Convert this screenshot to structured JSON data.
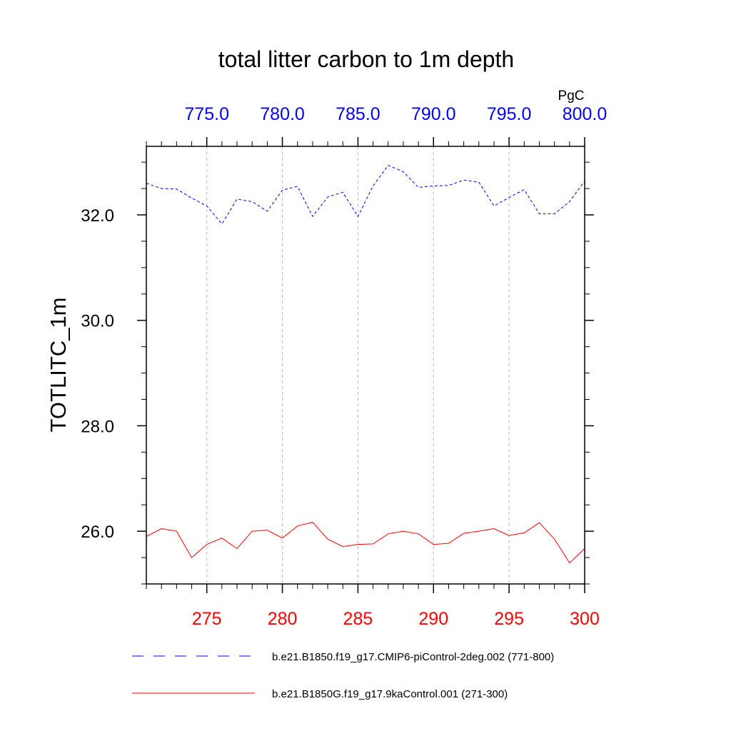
{
  "chart_data": {
    "type": "line",
    "title": "total litter carbon to 1m depth",
    "units": "PgC",
    "ylabel": "TOTLITC_1m",
    "ylim": [
      25.0,
      33.3
    ],
    "y_ticks": [
      "26.0",
      "28.0",
      "30.0",
      "32.0"
    ],
    "y_tick_values": [
      26,
      28,
      30,
      32
    ],
    "bottom_axis": {
      "xlim": [
        271,
        300
      ],
      "ticks": [
        "275",
        "280",
        "285",
        "290",
        "295",
        "300"
      ],
      "tick_values": [
        275,
        280,
        285,
        290,
        295,
        300
      ],
      "color": "#ff0000"
    },
    "top_axis": {
      "xlim": [
        771,
        800
      ],
      "ticks": [
        "775.0",
        "780.0",
        "785.0",
        "790.0",
        "795.0",
        "800.0"
      ],
      "tick_values": [
        775,
        780,
        785,
        790,
        795,
        800
      ],
      "color": "#0000ff"
    },
    "grid": "vertical dashed",
    "series": [
      {
        "name": "b.e21.B1850.f19_g17.CMIP6-piControl-2deg.002 (771-800)",
        "axis": "top",
        "color": "#0000ff",
        "dash": "dashed",
        "x": [
          771,
          772,
          773,
          774,
          775,
          776,
          777,
          778,
          779,
          780,
          781,
          782,
          783,
          784,
          785,
          786,
          787,
          788,
          789,
          790,
          791,
          792,
          793,
          794,
          795,
          796,
          797,
          798,
          799,
          800
        ],
        "values": [
          32.6,
          32.5,
          32.49,
          32.32,
          32.17,
          31.83,
          32.3,
          32.25,
          32.07,
          32.47,
          32.54,
          31.97,
          32.34,
          32.43,
          31.97,
          32.55,
          32.94,
          32.82,
          32.52,
          32.55,
          32.56,
          32.66,
          32.62,
          32.17,
          32.33,
          32.48,
          32.02,
          32.02,
          32.25,
          32.64
        ]
      },
      {
        "name": "b.e21.B1850G.f19_g17.9kaControl.001 (271-300)",
        "axis": "bottom",
        "color": "#ff0000",
        "dash": "solid",
        "x": [
          271,
          272,
          273,
          274,
          275,
          276,
          277,
          278,
          279,
          280,
          281,
          282,
          283,
          284,
          285,
          286,
          287,
          288,
          289,
          290,
          291,
          292,
          293,
          294,
          295,
          296,
          297,
          298,
          299,
          300
        ],
        "values": [
          25.9,
          26.05,
          26.0,
          25.5,
          25.75,
          25.87,
          25.67,
          26.0,
          26.02,
          25.87,
          26.1,
          26.17,
          25.85,
          25.71,
          25.75,
          25.76,
          25.95,
          26.0,
          25.95,
          25.75,
          25.77,
          25.96,
          26.0,
          26.05,
          25.92,
          25.97,
          26.16,
          25.85,
          25.4,
          25.67
        ]
      }
    ]
  }
}
